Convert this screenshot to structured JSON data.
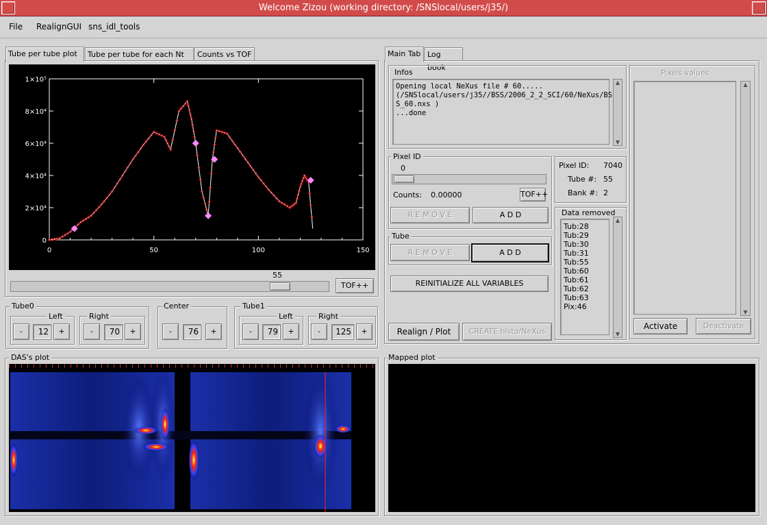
{
  "window": {
    "title": "Welcome Zizou  (working directory: /SNSlocal/users/j35/)"
  },
  "menu": [
    "File",
    "RealignGUI",
    "sns_idl_tools"
  ],
  "left_tabs": [
    "Tube per tube plot",
    "Tube per tube for each Nt",
    "Counts vs TOF"
  ],
  "right_tabs": [
    "Main Tab",
    "Log book"
  ],
  "plot": {
    "slider_value": "55",
    "tof_button": "TOF++",
    "yticks": [
      "0",
      "2×10⁴",
      "4×10⁴",
      "6×10⁴",
      "8×10⁴",
      "1×10⁵"
    ],
    "xticks": [
      "0",
      "50",
      "100",
      "150"
    ]
  },
  "chart_data": {
    "type": "line",
    "xlim": [
      0,
      150
    ],
    "ylim": [
      0,
      100000
    ],
    "x": [
      0,
      5,
      10,
      15,
      20,
      25,
      30,
      35,
      40,
      45,
      50,
      55,
      58,
      62,
      66,
      68,
      70,
      73,
      76,
      78,
      80,
      85,
      90,
      95,
      100,
      105,
      110,
      115,
      118,
      120,
      122,
      124,
      126
    ],
    "y": [
      0,
      1000,
      5000,
      11000,
      15000,
      22000,
      30000,
      40000,
      50000,
      59000,
      67000,
      64000,
      56000,
      80000,
      86000,
      75000,
      60000,
      30000,
      15000,
      50000,
      68000,
      66000,
      57000,
      48000,
      39000,
      31000,
      24000,
      20000,
      23000,
      33000,
      40000,
      36000,
      7000
    ],
    "markers": [
      {
        "x": 12,
        "y": 7000
      },
      {
        "x": 70,
        "y": 60000
      },
      {
        "x": 76,
        "y": 15000
      },
      {
        "x": 79,
        "y": 50000
      },
      {
        "x": 125,
        "y": 37000
      }
    ],
    "line_color": "#ffffff",
    "point_color": "#cc0000",
    "marker_color": "#ff88ff"
  },
  "tube0": {
    "label": "Tube0",
    "left_label": "Left",
    "right_label": "Right",
    "left": "12",
    "right": "70"
  },
  "center": {
    "label": "Center",
    "value": "76"
  },
  "tube1": {
    "label": "Tube1",
    "left_label": "Left",
    "right_label": "Right",
    "left": "79",
    "right": "125"
  },
  "steppers": {
    "minus": "-",
    "plus": "+"
  },
  "infos": {
    "label": "Infos",
    "text": "Opening local NeXus file # 60.....\n(/SNSlocal/users/j35//BSS/2006_2_2_SCI/60/NeXus/BS\nS_60.nxs )\n...done"
  },
  "pixel_id": {
    "label": "Pixel ID",
    "slider_value": "0",
    "counts_label": "Counts:",
    "counts_value": "0.00000",
    "tof_button": "TOF++",
    "remove": "R E M O V E",
    "add": "A D D"
  },
  "pixel_info": {
    "pixel_id_label": "Pixel ID:",
    "pixel_id": "7040",
    "tube_label": "Tube #:",
    "tube": "55",
    "bank_label": "Bank #:",
    "bank": "2"
  },
  "tube_frame": {
    "label": "Tube",
    "remove": "R E M O V E",
    "add": "A D D"
  },
  "reinit_button": "REINITIALIZE ALL VARIABLES",
  "realign_button": "Realign / Plot",
  "create_button": "CREATE histo/NeXus",
  "data_removed": {
    "label": "Data removed",
    "items": [
      "Tub:28",
      "Tub:29",
      "Tub:30",
      "Tub:31",
      "Tub:55",
      "Tub:60",
      "Tub:61",
      "Tub:62",
      "Tub:63",
      "Pix:46"
    ]
  },
  "pixels_values": {
    "label": "Pixels values",
    "activate": "Activate",
    "deactivate": "Deactivate"
  },
  "das_plot": {
    "label": "DAS's plot"
  },
  "mapped_plot": {
    "label": "Mapped plot"
  }
}
